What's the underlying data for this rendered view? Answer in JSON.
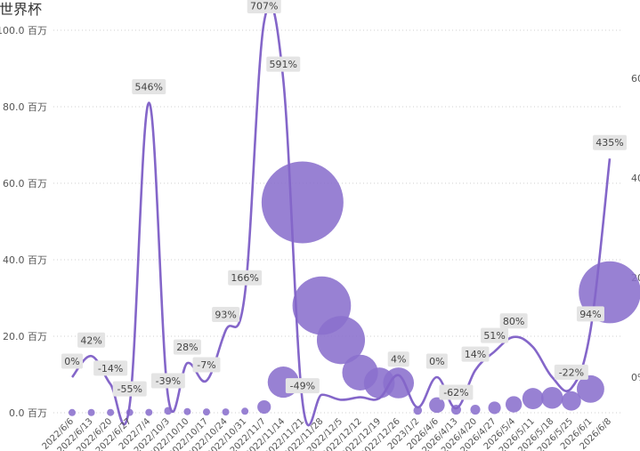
{
  "colors": {
    "accent": "#8a6fcd",
    "line": "#8466c9",
    "grid": "#cfcfcf",
    "label_bg": "#e4e4e4"
  },
  "chart_data": {
    "type": "combo",
    "title": "世界杯",
    "xlabel": "",
    "ylabel_left": "",
    "ylabel_right": "",
    "grid": true,
    "ylim_left": [
      0,
      100
    ],
    "ylim_right": [
      -60,
      720
    ],
    "yticks_left": [
      "0.0 百万",
      "20.0 百万",
      "40.0 百万",
      "60.0 百万",
      "80.0 百万",
      "100.0 百万"
    ],
    "yticks_right": [
      "0%",
      "20",
      "40",
      "60"
    ],
    "categories": [
      "2022/6/6",
      "2022/6/13",
      "2022/6/20",
      "2022/6/27",
      "2022/7/4",
      "2022/10/3",
      "2022/10/10",
      "2022/10/17",
      "2022/10/24",
      "2022/10/31",
      "2022/11/7",
      "2022/11/14",
      "2022/11/21",
      "2022/11/28",
      "2022/12/5",
      "2022/12/12",
      "2022/12/19",
      "2022/12/26",
      "2023/1/2",
      "2026/4/6",
      "2026/4/13",
      "2026/4/20",
      "2026/4/27",
      "2026/5/4",
      "2026/5/11",
      "2026/5/18",
      "2026/5/25",
      "2026/6/1",
      "2026/6/8"
    ],
    "series": [
      {
        "kind": "bubble",
        "values": [
          0.05,
          0.06,
          0.07,
          0.08,
          0.1,
          0.5,
          0.3,
          0.2,
          0.2,
          0.4,
          1.5,
          8.0,
          55.0,
          28.0,
          19.0,
          10.5,
          7.8,
          7.8,
          0.6,
          2.0,
          0.8,
          0.8,
          1.3,
          2.2,
          3.7,
          3.9,
          3.1,
          6.2,
          31.5
        ]
      },
      {
        "kind": "line",
        "values": [
          0,
          42,
          -14,
          -55,
          546,
          -39,
          28,
          -7,
          93,
          166,
          707,
          591,
          -49,
          -35,
          -45,
          -40,
          -42,
          4,
          -60,
          0,
          -62,
          14,
          51,
          80,
          60,
          0,
          -22,
          94,
          435
        ]
      }
    ],
    "data_labels": [
      "0%",
      "42%",
      "-14%",
      "-55%",
      "546%",
      "-39%",
      "28%",
      "-7%",
      "93%",
      "166%",
      "707%",
      "591%",
      "-49%",
      "",
      "",
      "",
      "",
      "4%",
      "",
      "0%",
      "-62%",
      "14%",
      "51%",
      "80%",
      "",
      "",
      "-22%",
      "94%",
      "435%"
    ]
  }
}
